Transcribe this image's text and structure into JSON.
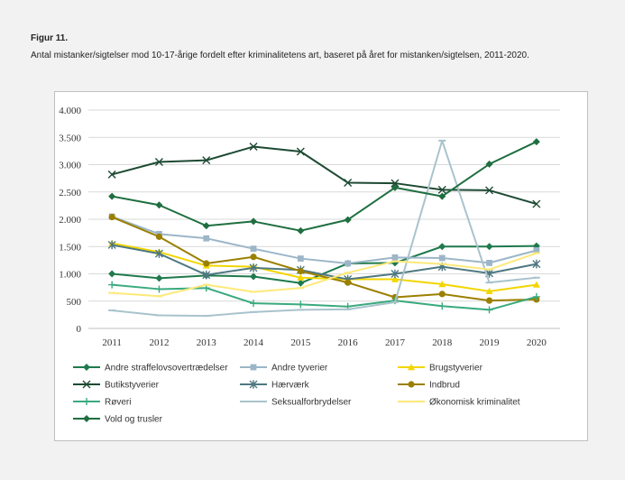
{
  "figure": {
    "label": "Figur 11.",
    "title": "Antal mistanker/sigtelser mod 10-17-årige fordelt efter kriminalitetens art, baseret på året for mistanken/sigtelsen, 2011-2020."
  },
  "chart_data": {
    "type": "line",
    "x": [
      2011,
      2012,
      2013,
      2014,
      2015,
      2016,
      2017,
      2018,
      2019,
      2020
    ],
    "ylim": [
      0,
      4000
    ],
    "yticks": [
      0,
      500,
      1000,
      1500,
      2000,
      2500,
      3000,
      3500,
      4000
    ],
    "ytick_labels": [
      "0",
      "500",
      "1.000",
      "1.500",
      "2.000",
      "2.500",
      "3.000",
      "3.500",
      "4.000"
    ],
    "grid": "horizontal",
    "legend_position": "bottom",
    "series": [
      {
        "name": "Andre straffelovsovertrædelser",
        "color": "#1f7a4d",
        "marker": "diamond",
        "values": [
          1000,
          920,
          970,
          950,
          830,
          1190,
          1200,
          1500,
          1500,
          1510
        ]
      },
      {
        "name": "Andre tyverier",
        "color": "#9cb6c8",
        "marker": "square",
        "values": [
          2050,
          1730,
          1650,
          1460,
          1280,
          1190,
          1300,
          1290,
          1200,
          1430
        ]
      },
      {
        "name": "Brugstyverier",
        "color": "#f2d600",
        "marker": "triangle",
        "values": [
          1560,
          1400,
          1150,
          1130,
          930,
          900,
          900,
          810,
          680,
          800
        ]
      },
      {
        "name": "Butikstyverier",
        "color": "#1d4a33",
        "marker": "x",
        "values": [
          2820,
          3050,
          3080,
          3330,
          3240,
          2670,
          2660,
          2540,
          2530,
          2280
        ]
      },
      {
        "name": "Hærværk",
        "color": "#4f7882",
        "marker": "star",
        "values": [
          1530,
          1370,
          980,
          1110,
          1070,
          900,
          1000,
          1130,
          1010,
          1180
        ]
      },
      {
        "name": "Indbrud",
        "color": "#9b8000",
        "marker": "circle",
        "values": [
          2040,
          1680,
          1190,
          1310,
          1050,
          840,
          570,
          630,
          510,
          530
        ]
      },
      {
        "name": "Røveri",
        "color": "#3aaa7e",
        "marker": "plus",
        "values": [
          800,
          720,
          740,
          460,
          440,
          400,
          510,
          410,
          340,
          580
        ]
      },
      {
        "name": "Seksualforbrydelser",
        "color": "#a9c3cc",
        "marker": "dash",
        "values": [
          330,
          240,
          230,
          300,
          340,
          350,
          480,
          3440,
          840,
          930
        ]
      },
      {
        "name": "Økonomisk kriminalitet",
        "color": "#fde97a",
        "marker": "dash",
        "values": [
          650,
          590,
          800,
          670,
          740,
          1020,
          1230,
          1180,
          1080,
          1380
        ]
      },
      {
        "name": "Vold og trusler",
        "color": "#1f6e40",
        "marker": "diamond",
        "values": [
          2420,
          2260,
          1880,
          1960,
          1790,
          1990,
          2580,
          2420,
          3010,
          3420
        ]
      }
    ]
  }
}
